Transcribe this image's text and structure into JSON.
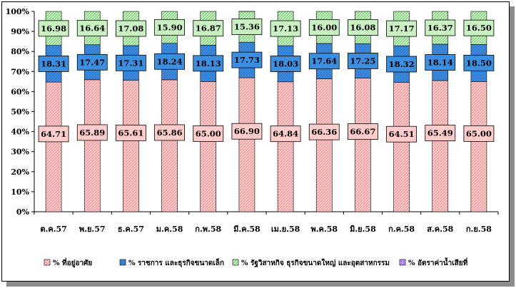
{
  "chart_data": {
    "type": "bar",
    "stacked": true,
    "percent": true,
    "title": "",
    "xlabel": "",
    "ylabel": "",
    "ylim": [
      0,
      100
    ],
    "yticks": [
      "0%",
      "10%",
      "20%",
      "30%",
      "40%",
      "50%",
      "60%",
      "70%",
      "80%",
      "90%",
      "100%"
    ],
    "grid": false,
    "legend_position": "bottom",
    "categories": [
      "ต.ค.57",
      "พ.ย.57",
      "ธ.ค.57",
      "ม.ค.58",
      "ก.พ.58",
      "มี.ค.58",
      "เม.ย.58",
      "พ.ค.58",
      "มิ.ย.58",
      "ก.ค.58",
      "ส.ค.58",
      "ก.ย.58"
    ],
    "series": [
      {
        "name": "% ที่อยู่อาศัย",
        "color": "#ffcccc",
        "hatch": "#f08080",
        "values": [
          64.71,
          65.89,
          65.61,
          65.86,
          65.0,
          66.9,
          64.84,
          66.36,
          66.67,
          64.51,
          65.49,
          65.0
        ]
      },
      {
        "name": "% ราชการ และธุรกิจขนาดเล็ก",
        "color": "#3c8fe0",
        "hatch": "#2a66c0",
        "values": [
          18.31,
          17.47,
          17.31,
          18.24,
          18.13,
          17.73,
          18.03,
          17.64,
          17.25,
          18.32,
          18.14,
          18.5
        ]
      },
      {
        "name": "% รัฐวิสาหกิจ ธุรกิจขนาดใหญ่ และอุตสาหกรรม",
        "color": "#c8f0c0",
        "hatch": "#60c060",
        "values": [
          16.98,
          16.64,
          17.08,
          15.9,
          16.87,
          15.36,
          17.13,
          16.0,
          16.08,
          17.17,
          16.37,
          16.5
        ]
      },
      {
        "name": "% อัตราค่าน้ำเสียที่",
        "color": "#cc99ff",
        "hatch": "#9966cc",
        "values": [
          0,
          0,
          0,
          0,
          0,
          0,
          0,
          0,
          0,
          0,
          0,
          0
        ]
      }
    ]
  }
}
